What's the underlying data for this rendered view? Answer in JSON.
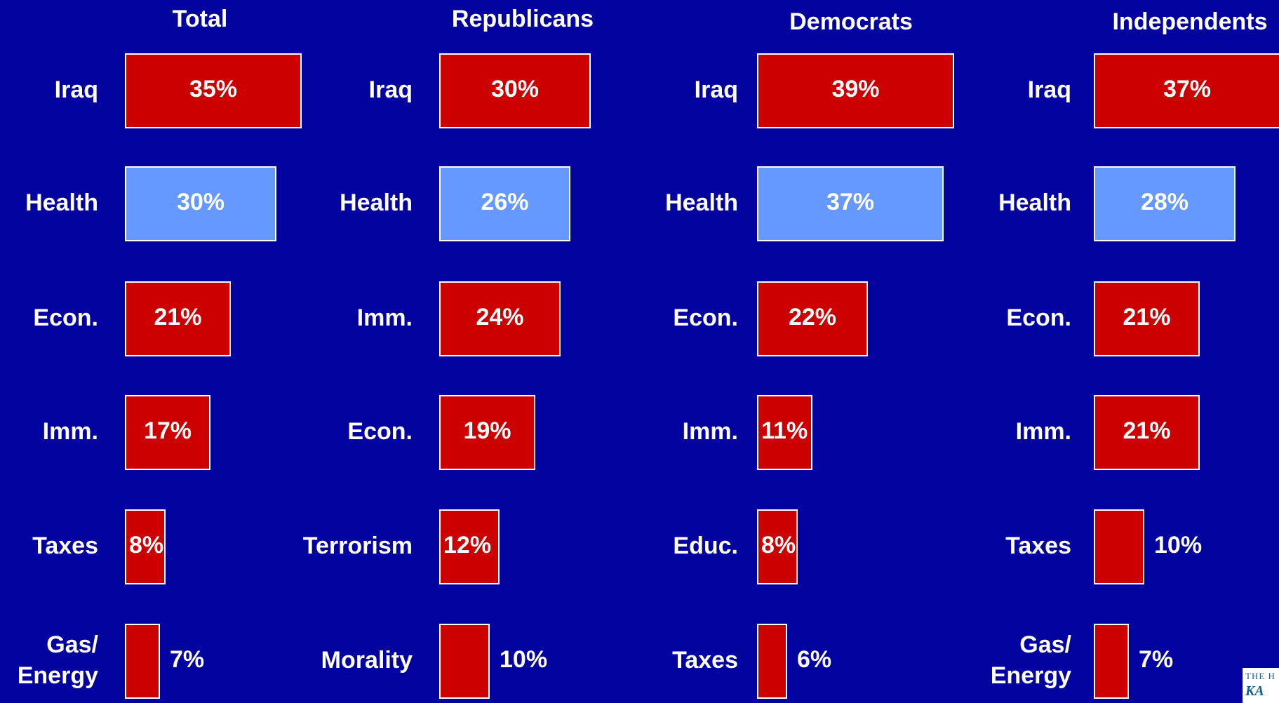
{
  "chart_data": [
    {
      "type": "bar",
      "title": "Total",
      "categories": [
        "Iraq",
        "Health",
        "Econ.",
        "Imm.",
        "Taxes",
        "Gas/\nEnergy"
      ],
      "values": [
        35,
        30,
        21,
        17,
        8,
        7
      ],
      "value_labels": [
        "35%",
        "30%",
        "21%",
        "17%",
        "8%",
        "7%"
      ]
    },
    {
      "type": "bar",
      "title": "Republicans",
      "categories": [
        "Iraq",
        "Health",
        "Imm.",
        "Econ.",
        "Terrorism",
        "Morality"
      ],
      "values": [
        30,
        26,
        24,
        19,
        12,
        10
      ],
      "value_labels": [
        "30%",
        "26%",
        "24%",
        "19%",
        "12%",
        "10%"
      ]
    },
    {
      "type": "bar",
      "title": "Democrats",
      "categories": [
        "Iraq",
        "Health",
        "Econ.",
        "Imm.",
        "Educ.",
        "Taxes"
      ],
      "values": [
        39,
        37,
        22,
        11,
        8,
        6
      ],
      "value_labels": [
        "39%",
        "37%",
        "22%",
        "11%",
        "8%",
        "6%"
      ]
    },
    {
      "type": "bar",
      "title": "Independents",
      "categories": [
        "Iraq",
        "Health",
        "Econ.",
        "Imm.",
        "Taxes",
        "Gas/\nEnergy"
      ],
      "values": [
        37,
        28,
        21,
        21,
        10,
        7
      ],
      "value_labels": [
        "37%",
        "28%",
        "21%",
        "21%",
        "10%",
        "7%"
      ]
    }
  ],
  "colors": {
    "background": "#0303A0",
    "bar_default": "#CC0000",
    "bar_health": "#6699FF",
    "text": "#FFFFFF"
  },
  "logo": {
    "line1": "THE H",
    "line2": "KA"
  }
}
